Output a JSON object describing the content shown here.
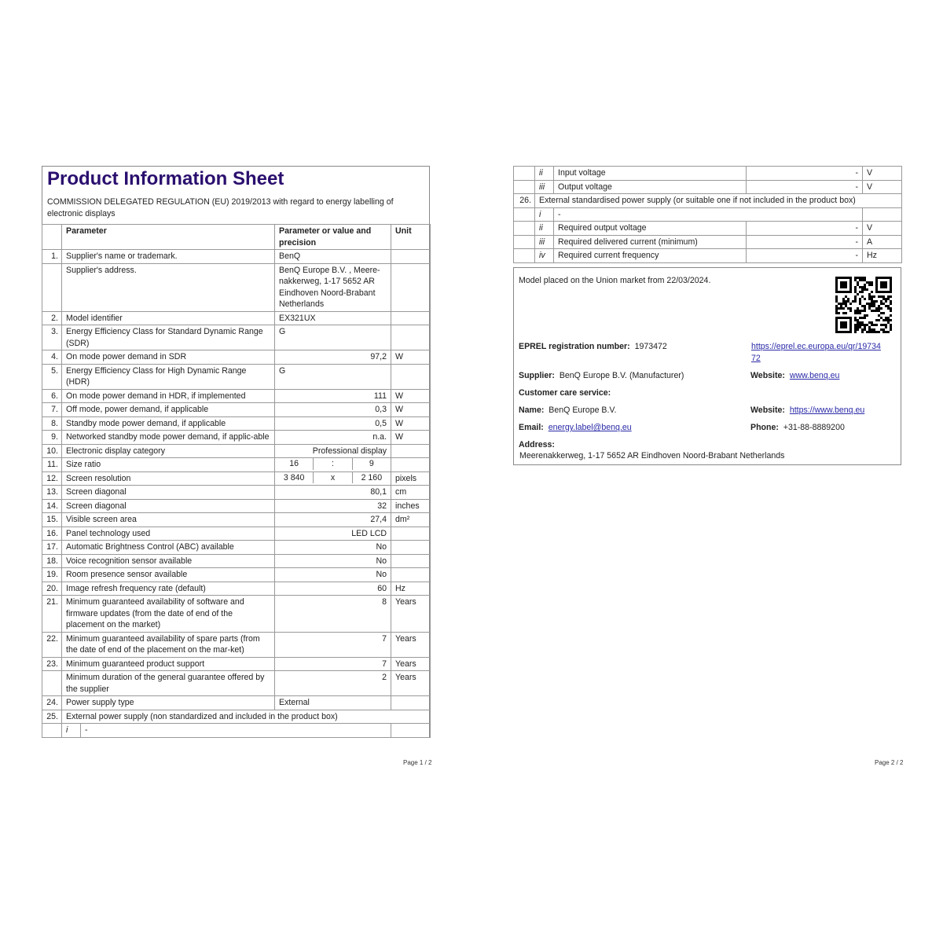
{
  "page1": {
    "title": "Product Information Sheet",
    "subtitle": "COMMISSION DELEGATED REGULATION (EU) 2019/2013 with regard to energy labelling of electronic displays",
    "headers": [
      "Parameter",
      "Parameter or value and precision",
      "Unit"
    ],
    "rows": [
      {
        "num": "1.",
        "label": "Supplier's name or trademark.",
        "value": "BenQ",
        "unit": "",
        "align": "left"
      },
      {
        "num": "",
        "label": "Supplier's address.",
        "value": "BenQ Europe B.V. , Meere-nakkerweg, 1-17 5652 AR Eindhoven Noord-Brabant Netherlands",
        "unit": "",
        "align": "left"
      },
      {
        "num": "2.",
        "label": "Model identifier",
        "value": "EX321UX",
        "unit": "",
        "align": "left"
      },
      {
        "num": "3.",
        "label": "Energy Efficiency Class for Standard Dynamic Range (SDR)",
        "value": "G",
        "unit": "",
        "align": "left"
      },
      {
        "num": "4.",
        "label": "On mode power demand in SDR",
        "value": "97,2",
        "unit": "W",
        "align": "right"
      },
      {
        "num": "5.",
        "label": "Energy Efficiency Class for High Dynamic Range (HDR)",
        "value": "G",
        "unit": "",
        "align": "left"
      },
      {
        "num": "6.",
        "label": "On mode power demand in HDR, if implemented",
        "value": "111",
        "unit": "W",
        "align": "right"
      },
      {
        "num": "7.",
        "label": "Off mode, power demand, if applicable",
        "value": "0,3",
        "unit": "W",
        "align": "right"
      },
      {
        "num": "8.",
        "label": "Standby mode power demand, if applicable",
        "value": "0,5",
        "unit": "W",
        "align": "right"
      },
      {
        "num": "9.",
        "label": "Networked standby mode power demand, if applic-able",
        "value": "n.a.",
        "unit": "W",
        "align": "right"
      },
      {
        "num": "10.",
        "label": "Electronic display category",
        "value": "Professional display",
        "unit": "",
        "align": "right"
      },
      {
        "num": "11.",
        "label": "Size ratio",
        "split": [
          "16",
          ":",
          "9"
        ],
        "unit": ""
      },
      {
        "num": "12.",
        "label": "Screen resolution",
        "split": [
          "3 840",
          "x",
          "2 160"
        ],
        "unit": "pixels"
      },
      {
        "num": "13.",
        "label": "Screen diagonal",
        "value": "80,1",
        "unit": "cm",
        "align": "right"
      },
      {
        "num": "14.",
        "label": "Screen diagonal",
        "value": "32",
        "unit": "inches",
        "align": "right"
      },
      {
        "num": "15.",
        "label": "Visible screen area",
        "value": "27,4",
        "unit": "dm²",
        "align": "right"
      },
      {
        "num": "16.",
        "label": "Panel technology used",
        "value": "LED LCD",
        "unit": "",
        "align": "right"
      },
      {
        "num": "17.",
        "label": "Automatic Brightness Control (ABC) available",
        "value": "No",
        "unit": "",
        "align": "right"
      },
      {
        "num": "18.",
        "label": "Voice recognition sensor available",
        "value": "No",
        "unit": "",
        "align": "right"
      },
      {
        "num": "19.",
        "label": "Room presence sensor available",
        "value": "No",
        "unit": "",
        "align": "right"
      },
      {
        "num": "20.",
        "label": "Image refresh frequency rate (default)",
        "value": "60",
        "unit": "Hz",
        "align": "right"
      },
      {
        "num": "21.",
        "label": "Minimum guaranteed availability of software and firmware updates (from the date of end of the placement on the market)",
        "value": "8",
        "unit": "Years",
        "align": "right"
      },
      {
        "num": "22.",
        "label": "Minimum guaranteed availability of spare parts (from the date of end of the placement on the mar-ket)",
        "value": "7",
        "unit": "Years",
        "align": "right"
      },
      {
        "num": "23.",
        "label": "Minimum guaranteed product support",
        "value": "7",
        "unit": "Years",
        "align": "right"
      },
      {
        "num": "",
        "label": "Minimum duration of the general guarantee offered by the supplier",
        "value": "2",
        "unit": "Years",
        "align": "right"
      },
      {
        "num": "24.",
        "label": "Power supply type",
        "value": "External",
        "unit": "",
        "align": "left"
      }
    ],
    "row25": {
      "num": "25.",
      "label": "External power supply (non standardized and included in the product box)"
    },
    "row25i": {
      "roman": "i",
      "value": "-"
    },
    "footer": "Page 1 / 2"
  },
  "page2": {
    "sub_rows_top": [
      {
        "roman": "ii",
        "label": "Input voltage",
        "value": "-",
        "unit": "V"
      },
      {
        "roman": "iii",
        "label": "Output voltage",
        "value": "-",
        "unit": "V"
      }
    ],
    "row26": {
      "num": "26.",
      "label": "External standardised power supply (or suitable one if not included in the product box)"
    },
    "row26i": {
      "roman": "i",
      "value": "-"
    },
    "sub_rows_bottom": [
      {
        "roman": "ii",
        "label": "Required output voltage",
        "value": "-",
        "unit": "V"
      },
      {
        "roman": "iii",
        "label": "Required delivered current (minimum)",
        "value": "-",
        "unit": "A"
      },
      {
        "roman": "iv",
        "label": "Required current frequency",
        "value": "-",
        "unit": "Hz"
      }
    ],
    "info": {
      "market": "Model placed on the Union market from 22/03/2024.",
      "eprel_label": "EPREL registration number:",
      "eprel_value": "1973472",
      "eprel_link": "https://eprel.ec.europa.eu/qr/1973472",
      "supplier_label": "Supplier:",
      "supplier_value": "BenQ Europe B.V. (Manufacturer)",
      "website_label": "Website:",
      "website_value": "www.benq.eu",
      "care_label": "Customer care service:",
      "name_label": "Name:",
      "name_value": "BenQ Europe B.V.",
      "website2_label": "Website:",
      "website2_value": "https://www.benq.eu",
      "email_label": "Email:",
      "email_value": "energy.label@benq.eu",
      "phone_label": "Phone:",
      "phone_value": "+31-88-8889200",
      "address_label": "Address:",
      "address_value": "Meerenakkerweg, 1-17 5652 AR Eindhoven Noord-Brabant Netherlands"
    },
    "footer": "Page 2 / 2"
  },
  "colors": {
    "title": "#2a0f6e",
    "link": "#2a2aa8"
  }
}
